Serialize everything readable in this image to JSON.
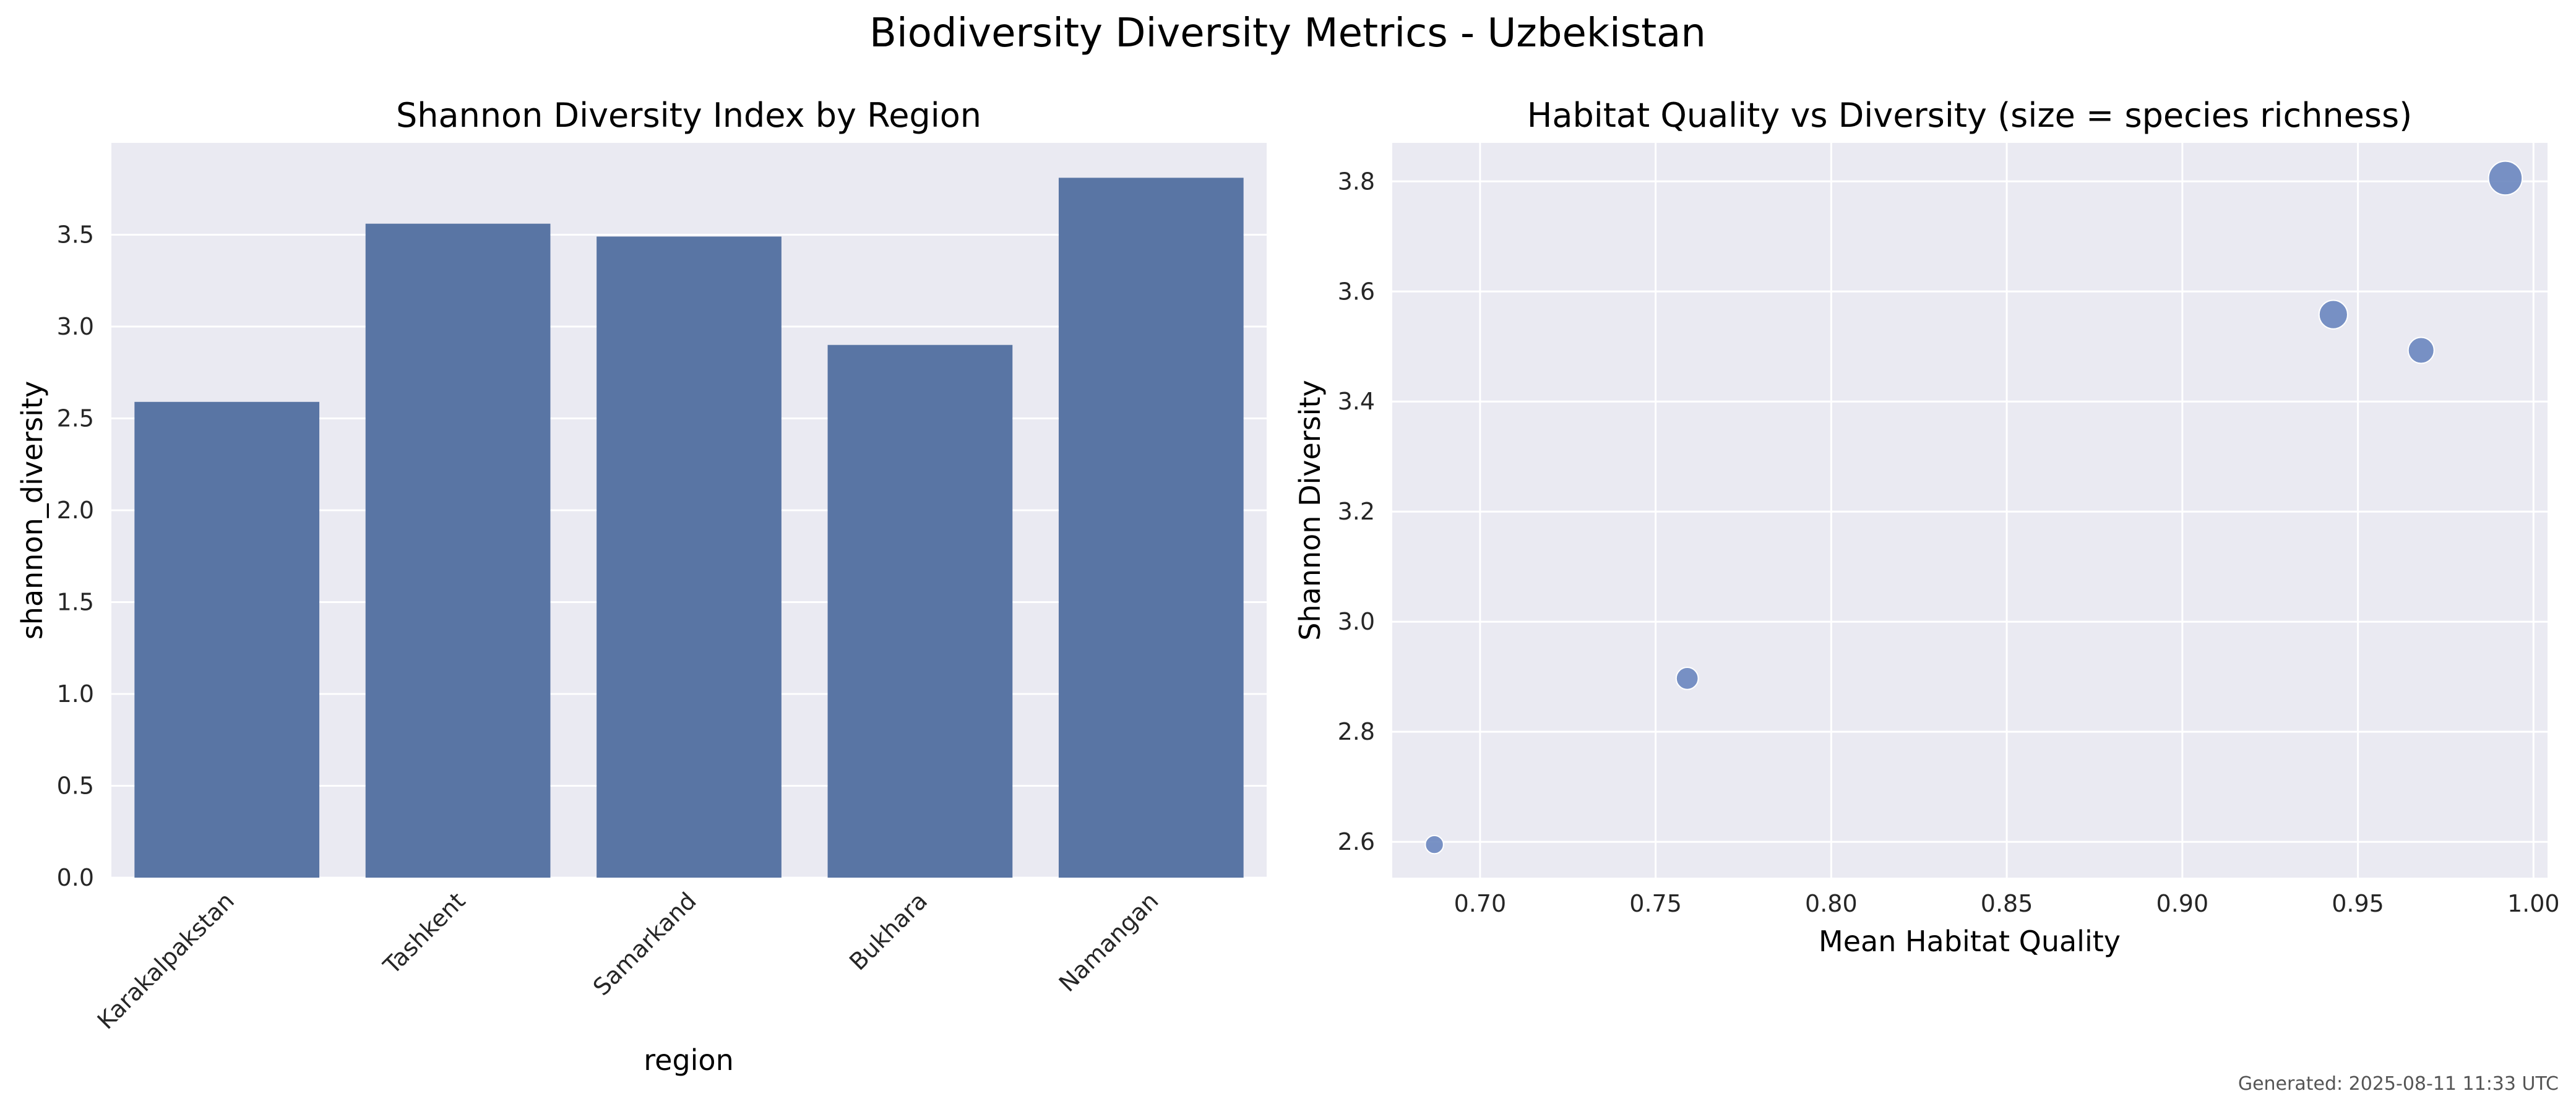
{
  "figure": {
    "title": "Biodiversity Diversity Metrics - Uzbekistan",
    "footer": "Generated: 2025-08-11 11:33 UTC"
  },
  "colors": {
    "bar": "#5975a4",
    "point": "#6a86bf",
    "axes_bg": "#eaeaf2",
    "grid": "#ffffff"
  },
  "chart_data": [
    {
      "type": "bar",
      "title": "Shannon Diversity Index by Region",
      "xlabel": "region",
      "ylabel": "shannon_diversity",
      "categories": [
        "Karakalpakstan",
        "Tashkent",
        "Samarkand",
        "Bukhara",
        "Namangan"
      ],
      "values": [
        2.59,
        3.56,
        3.49,
        2.9,
        3.81
      ],
      "ylim": [
        0,
        4.0
      ],
      "yticks": [
        0.0,
        0.5,
        1.0,
        1.5,
        2.0,
        2.5,
        3.0,
        3.5
      ],
      "ytick_labels": [
        "0.0",
        "0.5",
        "1.0",
        "1.5",
        "2.0",
        "2.5",
        "3.0",
        "3.5"
      ],
      "grid": true
    },
    {
      "type": "scatter",
      "title": "Habitat Quality vs Diversity (size = species richness)",
      "xlabel": "Mean Habitat Quality",
      "ylabel": "Shannon Diversity",
      "points": [
        {
          "x": 0.687,
          "y": 2.595,
          "size_rank": 1
        },
        {
          "x": 0.759,
          "y": 2.897,
          "size_rank": 2
        },
        {
          "x": 0.943,
          "y": 3.558,
          "size_rank": 4
        },
        {
          "x": 0.968,
          "y": 3.493,
          "size_rank": 3
        },
        {
          "x": 0.992,
          "y": 3.806,
          "size_rank": 5
        }
      ],
      "xlim": [
        0.675,
        1.004
      ],
      "ylim": [
        2.535,
        3.87
      ],
      "xticks": [
        0.7,
        0.75,
        0.8,
        0.85,
        0.9,
        0.95,
        1.0
      ],
      "xtick_labels": [
        "0.70",
        "0.75",
        "0.80",
        "0.85",
        "0.90",
        "0.95",
        "1.00"
      ],
      "yticks": [
        2.6,
        2.8,
        3.0,
        3.2,
        3.4,
        3.6,
        3.8
      ],
      "ytick_labels": [
        "2.6",
        "2.8",
        "3.0",
        "3.2",
        "3.4",
        "3.6",
        "3.8"
      ],
      "grid": true
    }
  ]
}
